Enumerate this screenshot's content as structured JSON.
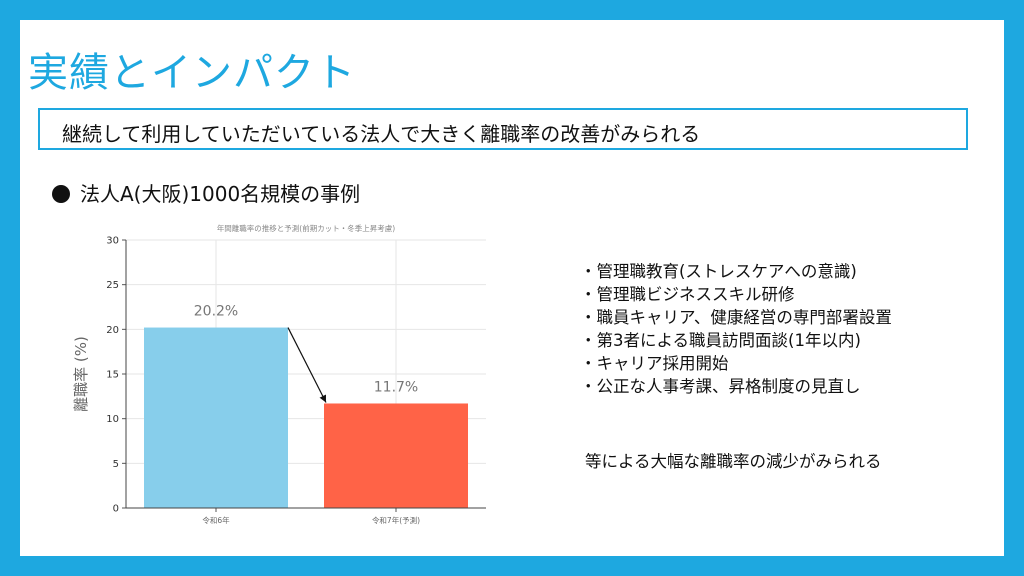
{
  "title": "実績とインパクト",
  "summary": "継続して利用していただいている法人で大きく離職率の改善がみられる",
  "case_label": "法人A(大阪)1000名規模の事例",
  "measures": [
    "・管理職教育(ストレスケアへの意識)",
    "・管理職ビジネススキル研修",
    "・職員キャリア、健康経営の専門部署設置",
    "・第3者による職員訪問面談(1年以内)",
    "・キャリア採用開始",
    "・公正な人事考課、昇格制度の見直し"
  ],
  "conclusion": "等による大幅な離職率の減少がみられる",
  "colors": {
    "frame": "#1ea8e0",
    "bar1": "#87ceeb",
    "bar2": "#ff6347"
  },
  "chart_data": {
    "type": "bar",
    "title": "年間離職率の推移と予測(前期カット・冬季上昇考慮)",
    "categories": [
      "令和6年",
      "令和7年(予測)"
    ],
    "values": [
      20.2,
      11.7
    ],
    "data_labels": [
      "20.2%",
      "11.7%"
    ],
    "xlabel": "",
    "ylabel": "離職率 (%)",
    "ylim": [
      0,
      30
    ],
    "yticks": [
      0,
      5,
      10,
      15,
      20,
      25,
      30
    ],
    "grid": true,
    "colors": [
      "#87ceeb",
      "#ff6347"
    ],
    "annotation": "arrow from 令和6年 bar to 令和7年 bar"
  }
}
